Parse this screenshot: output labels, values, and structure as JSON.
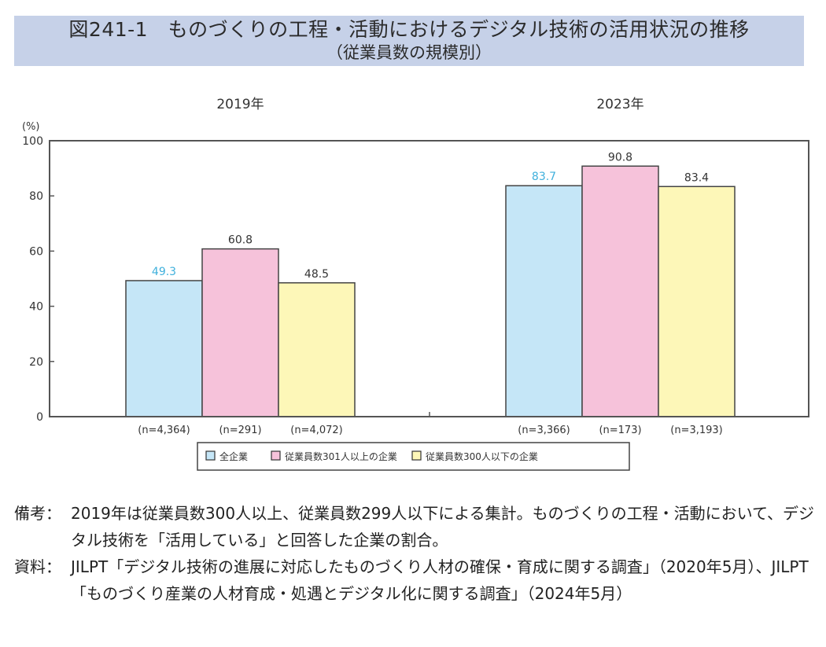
{
  "title": {
    "line1": "図241-1　ものづくりの工程・活動におけるデジタル技術の活用状況の推移",
    "line2": "（従業員数の規模別）"
  },
  "colors": {
    "all": "#c5e6f7",
    "large": "#f6c2da",
    "small": "#fdf7b8",
    "label_all": "#3fb0dc",
    "label_default": "#333333",
    "title_band": "#c6d1e8"
  },
  "chart_data": {
    "type": "bar",
    "title": "ものづくりの工程・活動におけるデジタル技術の活用状況の推移",
    "ylabel": "(%)",
    "ylim": [
      0,
      100
    ],
    "yticks": [
      0,
      20,
      40,
      60,
      80,
      100
    ],
    "grid": false,
    "legend_position": "bottom-center",
    "categories": [
      "2019年",
      "2023年"
    ],
    "series": [
      {
        "name": "全企業",
        "values": [
          49.3,
          83.7
        ],
        "n": [
          "(n=4,364)",
          "(n=3,366)"
        ],
        "value_labels": [
          "49.3",
          "83.7"
        ]
      },
      {
        "name": "従業員数301人以上の企業",
        "values": [
          60.8,
          90.8
        ],
        "n": [
          "(n=291)",
          "(n=173)"
        ],
        "value_labels": [
          "60.8",
          "90.8"
        ]
      },
      {
        "name": "従業員数300人以下の企業",
        "values": [
          48.5,
          83.4
        ],
        "n": [
          "(n=4,072)",
          "(n=3,193)"
        ],
        "value_labels": [
          "48.5",
          "83.4"
        ]
      }
    ]
  },
  "notes": {
    "remarks_label": "備考：",
    "remarks_text": "2019年は従業員数300人以上、従業員数299人以下による集計。ものづくりの工程・活動において、デジタル技術を「活用している」と回答した企業の割合。",
    "source_label": "資料：",
    "source_text": "JILPT「デジタル技術の進展に対応したものづくり人材の確保・育成に関する調査」（2020年5月）、JILPT「ものづくり産業の人材育成・処遇とデジタル化に関する調査」（2024年5月）"
  }
}
